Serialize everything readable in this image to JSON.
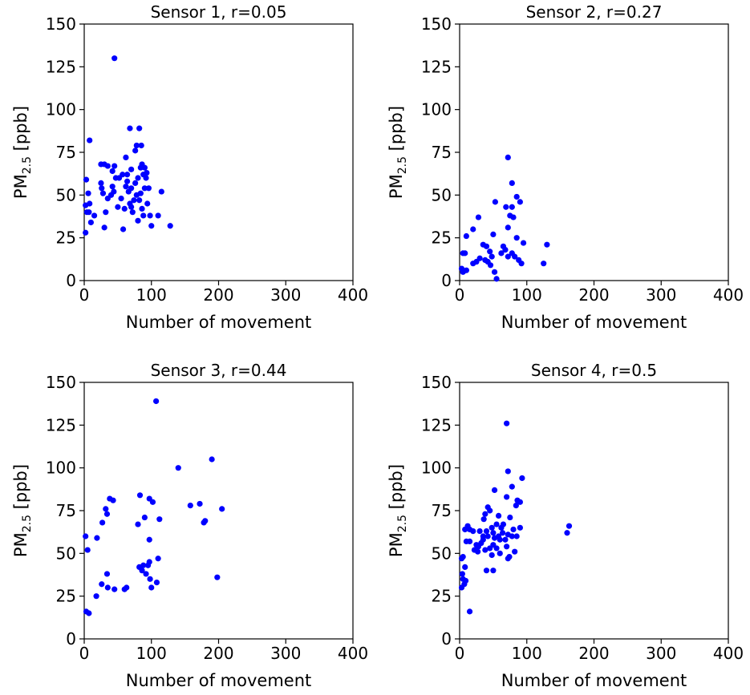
{
  "chart_data": [
    {
      "type": "scatter",
      "title": "Sensor 1, r=0.05",
      "xlabel": "Number of movement",
      "ylabel": {
        "main": "PM",
        "sub": "2.5",
        "unit": " [ppb]"
      },
      "xlim": [
        0,
        400
      ],
      "ylim": [
        0,
        150
      ],
      "xticks": [
        "0",
        "100",
        "200",
        "300",
        "400"
      ],
      "yticks": [
        "0",
        "25",
        "50",
        "75",
        "100",
        "125",
        "150"
      ],
      "color": "#0000ff",
      "points": [
        [
          45,
          130
        ],
        [
          8,
          82
        ],
        [
          68,
          89
        ],
        [
          82,
          89
        ],
        [
          78,
          79
        ],
        [
          85,
          79
        ],
        [
          76,
          76
        ],
        [
          62,
          72
        ],
        [
          70,
          65
        ],
        [
          86,
          68
        ],
        [
          90,
          66
        ],
        [
          93,
          63
        ],
        [
          88,
          62
        ],
        [
          30,
          68
        ],
        [
          35,
          67
        ],
        [
          45,
          67
        ],
        [
          25,
          68
        ],
        [
          42,
          64
        ],
        [
          47,
          60
        ],
        [
          52,
          60
        ],
        [
          57,
          62
        ],
        [
          3,
          59
        ],
        [
          2,
          44
        ],
        [
          8,
          45
        ],
        [
          6,
          51
        ],
        [
          7,
          40
        ],
        [
          15,
          38
        ],
        [
          4,
          40
        ],
        [
          2,
          28
        ],
        [
          10,
          34
        ],
        [
          25,
          57
        ],
        [
          28,
          51
        ],
        [
          26,
          54
        ],
        [
          35,
          48
        ],
        [
          32,
          40
        ],
        [
          30,
          31
        ],
        [
          40,
          50
        ],
        [
          42,
          55
        ],
        [
          44,
          52
        ],
        [
          55,
          48
        ],
        [
          50,
          43
        ],
        [
          60,
          42
        ],
        [
          58,
          30
        ],
        [
          62,
          55
        ],
        [
          64,
          58
        ],
        [
          66,
          52
        ],
        [
          68,
          45
        ],
        [
          70,
          43
        ],
        [
          72,
          40
        ],
        [
          74,
          47
        ],
        [
          76,
          57
        ],
        [
          78,
          50
        ],
        [
          80,
          60
        ],
        [
          82,
          47
        ],
        [
          84,
          51
        ],
        [
          86,
          42
        ],
        [
          88,
          38
        ],
        [
          90,
          54
        ],
        [
          92,
          60
        ],
        [
          94,
          45
        ],
        [
          96,
          54
        ],
        [
          98,
          38
        ],
        [
          100,
          32
        ],
        [
          110,
          38
        ],
        [
          115,
          52
        ],
        [
          128,
          32
        ],
        [
          80,
          35
        ],
        [
          84,
          66
        ],
        [
          70,
          54
        ],
        [
          64,
          62
        ]
      ]
    },
    {
      "type": "scatter",
      "title": "Sensor 2, r=0.27",
      "xlabel": "Number of movement",
      "ylabel": {
        "main": "PM",
        "sub": "2.5",
        "unit": " [ppb]"
      },
      "xlim": [
        0,
        400
      ],
      "ylim": [
        0,
        150
      ],
      "xticks": [
        "0",
        "100",
        "200",
        "300",
        "400"
      ],
      "yticks": [
        "0",
        "25",
        "50",
        "75",
        "100",
        "125",
        "150"
      ],
      "color": "#0000ff",
      "points": [
        [
          72,
          72
        ],
        [
          78,
          57
        ],
        [
          85,
          49
        ],
        [
          90,
          46
        ],
        [
          53,
          46
        ],
        [
          78,
          43
        ],
        [
          69,
          43
        ],
        [
          75,
          38
        ],
        [
          28,
          37
        ],
        [
          80,
          37
        ],
        [
          20,
          30
        ],
        [
          10,
          26
        ],
        [
          72,
          31
        ],
        [
          50,
          27
        ],
        [
          85,
          25
        ],
        [
          65,
          20
        ],
        [
          95,
          22
        ],
        [
          130,
          21
        ],
        [
          40,
          20
        ],
        [
          35,
          21
        ],
        [
          45,
          17
        ],
        [
          5,
          16
        ],
        [
          8,
          16
        ],
        [
          48,
          14
        ],
        [
          30,
          13
        ],
        [
          38,
          12
        ],
        [
          42,
          11
        ],
        [
          25,
          11
        ],
        [
          20,
          10
        ],
        [
          72,
          14
        ],
        [
          78,
          16
        ],
        [
          82,
          14
        ],
        [
          88,
          12
        ],
        [
          92,
          10
        ],
        [
          125,
          10
        ],
        [
          3,
          7
        ],
        [
          5,
          5
        ],
        [
          10,
          6
        ],
        [
          52,
          5
        ],
        [
          55,
          1
        ],
        [
          46,
          9
        ],
        [
          62,
          16
        ],
        [
          68,
          18
        ]
      ]
    },
    {
      "type": "scatter",
      "title": "Sensor 3, r=0.44",
      "xlabel": "Number of movement",
      "ylabel": {
        "main": "PM",
        "sub": "2.5",
        "unit": " [ppb]"
      },
      "xlim": [
        0,
        400
      ],
      "ylim": [
        0,
        150
      ],
      "xticks": [
        "0",
        "100",
        "200",
        "300",
        "400"
      ],
      "yticks": [
        "0",
        "25",
        "50",
        "75",
        "100",
        "125",
        "150"
      ],
      "color": "#0000ff",
      "points": [
        [
          107,
          139
        ],
        [
          190,
          105
        ],
        [
          140,
          100
        ],
        [
          83,
          84
        ],
        [
          97,
          82
        ],
        [
          102,
          80
        ],
        [
          38,
          82
        ],
        [
          43,
          81
        ],
        [
          32,
          76
        ],
        [
          34,
          73
        ],
        [
          172,
          79
        ],
        [
          158,
          78
        ],
        [
          205,
          76
        ],
        [
          90,
          71
        ],
        [
          112,
          70
        ],
        [
          178,
          68
        ],
        [
          180,
          69
        ],
        [
          27,
          68
        ],
        [
          80,
          67
        ],
        [
          97,
          58
        ],
        [
          19,
          59
        ],
        [
          2,
          60
        ],
        [
          5,
          52
        ],
        [
          110,
          47
        ],
        [
          97,
          45
        ],
        [
          95,
          43
        ],
        [
          82,
          42
        ],
        [
          88,
          43
        ],
        [
          86,
          40
        ],
        [
          92,
          38
        ],
        [
          98,
          35
        ],
        [
          34,
          38
        ],
        [
          108,
          33
        ],
        [
          198,
          36
        ],
        [
          26,
          32
        ],
        [
          35,
          30
        ],
        [
          45,
          29
        ],
        [
          60,
          29
        ],
        [
          63,
          30
        ],
        [
          100,
          30
        ],
        [
          18,
          25
        ],
        [
          3,
          16
        ],
        [
          7,
          15
        ]
      ]
    },
    {
      "type": "scatter",
      "title": "Sensor 4, r=0.5",
      "xlabel": "Number of movement",
      "ylabel": {
        "main": "PM",
        "sub": "2.5",
        "unit": " [ppb]"
      },
      "xlim": [
        0,
        400
      ],
      "ylim": [
        0,
        150
      ],
      "xticks": [
        "0",
        "100",
        "200",
        "300",
        "400"
      ],
      "yticks": [
        "0",
        "25",
        "50",
        "75",
        "100",
        "125",
        "150"
      ],
      "color": "#0000ff",
      "points": [
        [
          70,
          126
        ],
        [
          72,
          98
        ],
        [
          93,
          94
        ],
        [
          78,
          89
        ],
        [
          52,
          87
        ],
        [
          70,
          83
        ],
        [
          86,
          81
        ],
        [
          90,
          80
        ],
        [
          84,
          78
        ],
        [
          42,
          77
        ],
        [
          45,
          75
        ],
        [
          38,
          73
        ],
        [
          58,
          72
        ],
        [
          75,
          71
        ],
        [
          36,
          70
        ],
        [
          65,
          67
        ],
        [
          55,
          67
        ],
        [
          48,
          65
        ],
        [
          62,
          65
        ],
        [
          90,
          65
        ],
        [
          160,
          62
        ],
        [
          163,
          66
        ],
        [
          8,
          64
        ],
        [
          12,
          66
        ],
        [
          15,
          64
        ],
        [
          20,
          63
        ],
        [
          30,
          63
        ],
        [
          40,
          63
        ],
        [
          42,
          60
        ],
        [
          50,
          62
        ],
        [
          52,
          59
        ],
        [
          58,
          60
        ],
        [
          64,
          62
        ],
        [
          68,
          58
        ],
        [
          72,
          61
        ],
        [
          78,
          60
        ],
        [
          80,
          64
        ],
        [
          85,
          60
        ],
        [
          10,
          57
        ],
        [
          15,
          57
        ],
        [
          25,
          55
        ],
        [
          28,
          54
        ],
        [
          32,
          56
        ],
        [
          35,
          58
        ],
        [
          38,
          52
        ],
        [
          45,
          53
        ],
        [
          50,
          55
        ],
        [
          55,
          53
        ],
        [
          60,
          50
        ],
        [
          70,
          54
        ],
        [
          74,
          48
        ],
        [
          72,
          47
        ],
        [
          82,
          51
        ],
        [
          48,
          49
        ],
        [
          22,
          52
        ],
        [
          27,
          51
        ],
        [
          3,
          47
        ],
        [
          5,
          48
        ],
        [
          8,
          42
        ],
        [
          4,
          38
        ],
        [
          5,
          35
        ],
        [
          7,
          32
        ],
        [
          9,
          34
        ],
        [
          3,
          30
        ],
        [
          40,
          40
        ],
        [
          50,
          40
        ],
        [
          15,
          16
        ],
        [
          60,
          58
        ],
        [
          35,
          60
        ]
      ]
    }
  ]
}
